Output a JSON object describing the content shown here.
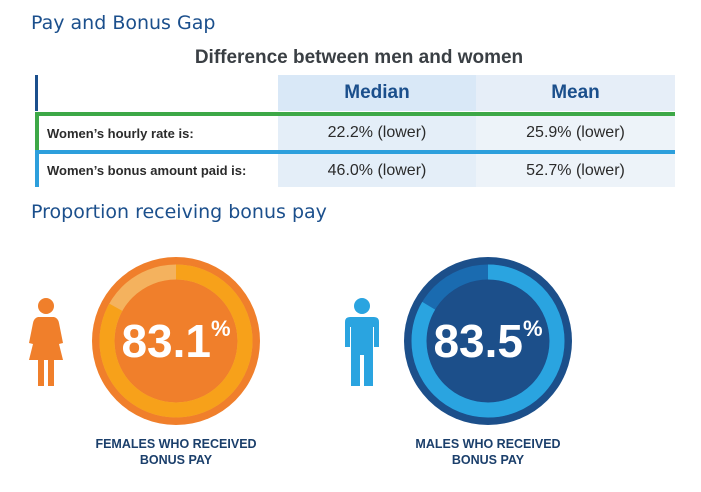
{
  "header": {
    "title": "Pay and Bonus Gap"
  },
  "table": {
    "title": "Difference between men and women",
    "columns": [
      "Median",
      "Mean"
    ],
    "rows": [
      {
        "label": "Women’s hourly rate is:",
        "median": "22.2% (lower)",
        "mean": "25.9% (lower)"
      },
      {
        "label": "Women’s bonus amount paid is:",
        "median": "46.0% (lower)",
        "mean": "52.7% (lower)"
      }
    ]
  },
  "bonus_section": {
    "title": "Proportion receiving bonus pay",
    "female": {
      "number": "83.1",
      "symbol": "%",
      "caption_line1": "FEMALES WHO RECEIVED",
      "caption_line2": "BONUS PAY",
      "icon": "female-person-icon"
    },
    "male": {
      "number": "83.5",
      "symbol": "%",
      "caption_line1": "MALES WHO RECEIVED",
      "caption_line2": "BONUS PAY",
      "icon": "male-person-icon"
    }
  },
  "colors": {
    "heading": "#1b4f8c",
    "female_outer": "#f07f2b",
    "female_ring": "#f7a11a",
    "female_track": "#f4b25e",
    "male_outer": "#1c4f8a",
    "male_ring": "#2aa4e0",
    "male_track": "#1a6bb0"
  },
  "chart_data": [
    {
      "type": "table",
      "title": "Difference between men and women",
      "columns": [
        "Median",
        "Mean"
      ],
      "rows": [
        {
          "label": "Women’s hourly rate is:",
          "values": [
            "22.2% (lower)",
            "25.9% (lower)"
          ]
        },
        {
          "label": "Women’s bonus amount paid is:",
          "values": [
            "46.0% (lower)",
            "52.7% (lower)"
          ]
        }
      ]
    },
    {
      "type": "pie",
      "title": "Proportion receiving bonus pay",
      "series": [
        {
          "name": "FEMALES WHO RECEIVED BONUS PAY",
          "values": [
            83.1
          ]
        },
        {
          "name": "MALES WHO RECEIVED BONUS PAY",
          "values": [
            83.5
          ]
        }
      ]
    }
  ]
}
